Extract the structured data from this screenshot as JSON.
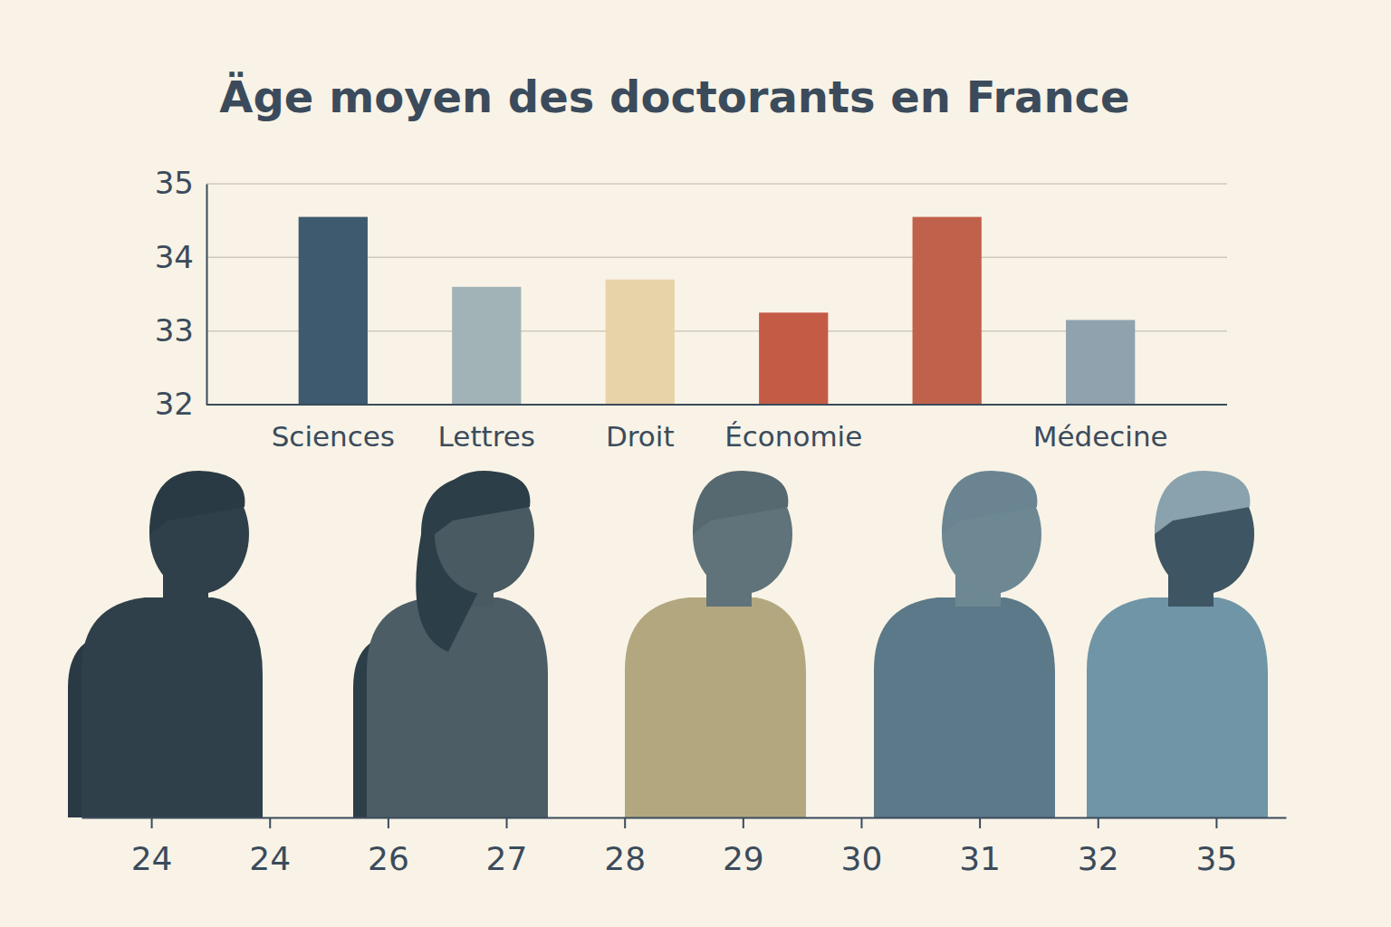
{
  "chart_data": [
    {
      "type": "bar",
      "title": "Äge moyen des doctorants en France",
      "categories": [
        "Sciences",
        "Lettres",
        "Droit",
        "Économie",
        null,
        "Médecine"
      ],
      "values": [
        34.55,
        33.6,
        33.7,
        33.25,
        34.55,
        33.15
      ],
      "colors": [
        "#3e5a6e",
        "#a2b3b7",
        "#e8d3a8",
        "#c45b45",
        "#c0624b",
        "#8fa2ad"
      ],
      "ylim": [
        32,
        35
      ],
      "yticks": [
        32,
        33,
        34,
        35
      ],
      "grid": true
    },
    {
      "type": "axis",
      "categories": [
        "24",
        "24",
        "26",
        "27",
        "28",
        "29",
        "30",
        "31",
        "32",
        "35"
      ]
    }
  ]
}
